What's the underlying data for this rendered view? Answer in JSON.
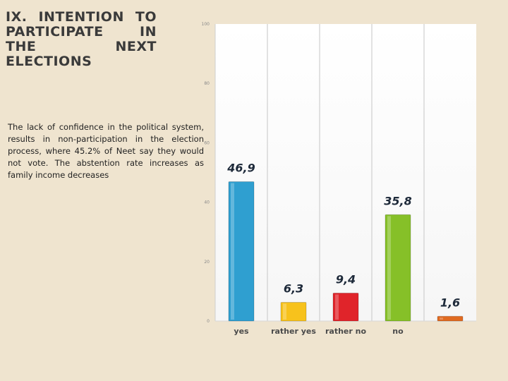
{
  "title": "IX. INTENTION TO PARTICIPATE IN THE NEXT ELECTIONS",
  "description": "The lack of confidence in the political system, results in non-participation in the election process, where 45.2% of Neet say they would not vote. The abstention rate increases as family income decreases",
  "chart_data": {
    "type": "bar",
    "categories": [
      "yes",
      "rather yes",
      "rather no",
      "no",
      ""
    ],
    "values": [
      46.9,
      6.3,
      9.4,
      35.8,
      1.6
    ],
    "value_labels": [
      "46,9",
      "6,3",
      "9,4",
      "35,8",
      "1,6"
    ],
    "colors": [
      "#2f9fd0",
      "#f7c21c",
      "#e0242a",
      "#86c028",
      "#e06a20"
    ],
    "ylim": [
      0,
      100
    ],
    "yticks": [
      0,
      20,
      40,
      60,
      80,
      100
    ],
    "grid": true
  }
}
